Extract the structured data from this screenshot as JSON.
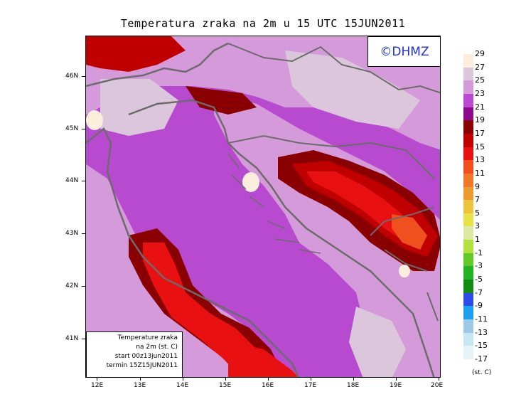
{
  "title": "Temperatura zraka na 2m u 15 UTC 15JUN2011",
  "logo": "©DHMZ",
  "info": {
    "line1": "Temperature zraka",
    "line2": "na 2m (st. C)",
    "line3": "start 00z13jun2011",
    "line4": "termin 15Z15JUN2011"
  },
  "lat_labels": [
    "46N",
    "45N",
    "44N",
    "43N",
    "42N",
    "41N"
  ],
  "lon_labels": [
    "12E",
    "13E",
    "14E",
    "15E",
    "16E",
    "17E",
    "18E",
    "19E",
    "20E"
  ],
  "legend": {
    "labels": [
      "29",
      "27",
      "25",
      "23",
      "21",
      "19",
      "17",
      "15",
      "13",
      "11",
      "9",
      "7",
      "5",
      "3",
      "1",
      "-1",
      "-3",
      "-5",
      "-7",
      "-9",
      "-11",
      "-13",
      "-15",
      "-17"
    ],
    "colors": [
      "#fbeedd",
      "#dcc6dc",
      "#d59ad9",
      "#bb4ad2",
      "#8c0a8e",
      "#8a0000",
      "#c00000",
      "#e81010",
      "#f0501e",
      "#f07828",
      "#ec9a32",
      "#ecc43c",
      "#e8e24a",
      "#dce8a4",
      "#b4e23c",
      "#64c828",
      "#22b422",
      "#128c12",
      "#2c4be8",
      "#1ea0f0",
      "#9ec8e6",
      "#c8e6f2",
      "#e6f4f8"
    ],
    "units": "(st. C)"
  },
  "colors": {
    "sea": "#b84ad0",
    "land_low": "#d59ad9",
    "land_mid": "#dcc6dc",
    "hot1": "#8a0000",
    "hot2": "#c00000",
    "hot3": "#e81010",
    "hot4": "#f0501e",
    "coast": "#6b6b6b"
  }
}
